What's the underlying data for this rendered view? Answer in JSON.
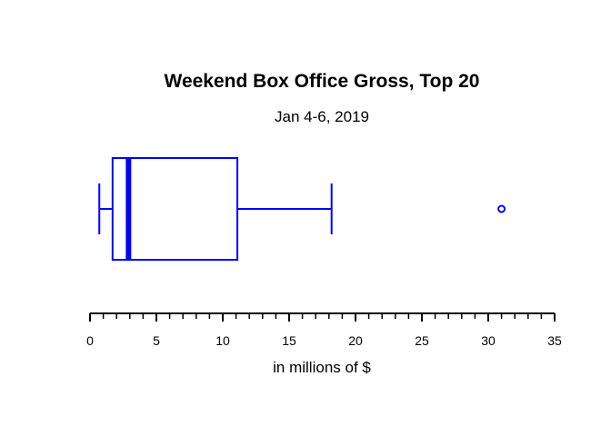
{
  "chart_data": {
    "type": "boxplot",
    "title": "Weekend Box Office Gross, Top 20",
    "subtitle": "Jan 4-6, 2019",
    "xlabel": "in millions of $",
    "orientation": "horizontal",
    "xlim": [
      0,
      35
    ],
    "major_ticks": [
      0,
      5,
      10,
      15,
      20,
      25,
      30,
      35
    ],
    "minor_tick_step": 1,
    "tick_labels": [
      "0",
      "5",
      "10",
      "15",
      "20",
      "25",
      "30",
      "35"
    ],
    "box": {
      "whisker_low": 0.7,
      "q1": 1.7,
      "median": 2.9,
      "q3": 11.1,
      "whisker_high": 18.2,
      "outliers": [
        31.0
      ]
    },
    "color": "#0000ff",
    "grid": false
  }
}
